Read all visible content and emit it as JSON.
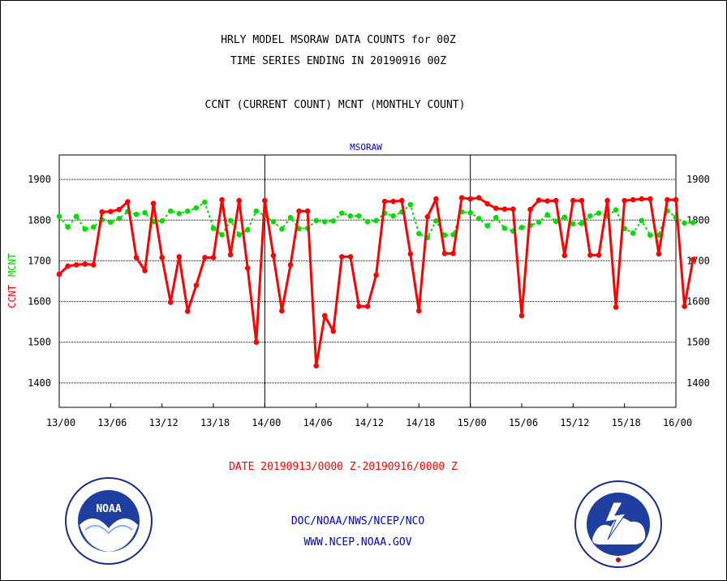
{
  "header": {
    "title_line1": "HRLY MODEL MSORAW DATA COUNTS for 00Z",
    "title_line2": "TIME SERIES ENDING IN 20190916 00Z",
    "subtitle": "CCNT (CURRENT COUNT) MCNT (MONTHLY COUNT)"
  },
  "footer": {
    "date_range": "DATE 20190913/0000 Z-20190916/0000 Z",
    "agency": "DOC/NOAA/NWS/NCEP/NCO",
    "website": "WWW.NCEP.NOAA.GOV"
  },
  "logos": {
    "noaa_text": "NOAA",
    "noaa_ring_top": "NATIONAL OCEANIC AND ATMOSPHERIC ADMINISTRATION",
    "noaa_ring_bottom": "U.S. DEPARTMENT OF COMMERCE",
    "nws_ring": "NATIONAL WEATHER SERVICE"
  },
  "colors": {
    "ccnt": "#ff0000",
    "mcnt": "#00dd00",
    "plot_label": "#0000cc",
    "footer_text": "#0000cc",
    "date_text": "#ff0000"
  },
  "chart_data": {
    "type": "line",
    "title": "MSORAW",
    "ylabel_ccnt": "CCNT",
    "ylabel_mcnt": "MCNT",
    "xlim": [
      0,
      72
    ],
    "ylim": [
      1340,
      1960
    ],
    "yticks": [
      1400,
      1500,
      1600,
      1700,
      1800,
      1900
    ],
    "xticks": [
      0,
      6,
      12,
      18,
      24,
      30,
      36,
      42,
      48,
      54,
      60,
      66,
      72
    ],
    "xtick_labels": [
      "13/00",
      "13/06",
      "13/12",
      "13/18",
      "14/00",
      "14/06",
      "14/12",
      "14/18",
      "15/00",
      "15/06",
      "15/12",
      "15/18",
      "16/00"
    ],
    "day_separators": [
      24,
      48
    ],
    "grid": true,
    "series": [
      {
        "name": "CCNT",
        "color": "#ff0000",
        "values": [
          1667,
          1687,
          1690,
          1692,
          1690,
          1820,
          1821,
          1826,
          1845,
          1708,
          1676,
          1841,
          1708,
          1598,
          1710,
          1576,
          1640,
          1708,
          1708,
          1850,
          1715,
          1848,
          1682,
          1500,
          1848,
          1713,
          1577,
          1690,
          1822,
          1822,
          1442,
          1565,
          1527,
          1710,
          1710,
          1588,
          1588,
          1665,
          1846,
          1846,
          1848,
          1717,
          1577,
          1808,
          1852,
          1718,
          1718,
          1855,
          1852,
          1855,
          1840,
          1829,
          1827,
          1827,
          1565,
          1826,
          1849,
          1847,
          1848,
          1713,
          1848,
          1848,
          1714,
          1714,
          1848,
          1586,
          1848,
          1850,
          1852,
          1852,
          1717,
          1850,
          1850,
          1588,
          1703
        ]
      },
      {
        "name": "MCNT",
        "color": "#00dd00",
        "values": [
          1809,
          1783,
          1809,
          1778,
          1783,
          1801,
          1795,
          1804,
          1821,
          1814,
          1818,
          1796,
          1798,
          1822,
          1816,
          1822,
          1830,
          1844,
          1780,
          1764,
          1799,
          1764,
          1776,
          1822,
          1811,
          1796,
          1778,
          1806,
          1779,
          1780,
          1799,
          1796,
          1798,
          1817,
          1810,
          1810,
          1796,
          1799,
          1817,
          1810,
          1820,
          1838,
          1767,
          1757,
          1798,
          1763,
          1764,
          1820,
          1818,
          1804,
          1786,
          1806,
          1780,
          1773,
          1782,
          1787,
          1795,
          1813,
          1797,
          1807,
          1791,
          1792,
          1810,
          1817,
          1810,
          1825,
          1779,
          1768,
          1799,
          1763,
          1763,
          1823,
          1807,
          1793,
          1794
        ]
      }
    ]
  }
}
